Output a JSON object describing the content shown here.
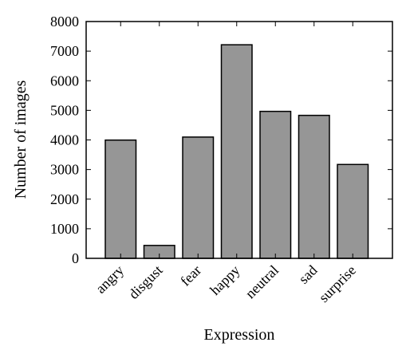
{
  "chart_data": {
    "type": "bar",
    "title": "",
    "xlabel": "Expression",
    "ylabel": "Number of images",
    "categories": [
      "angry",
      "disgust",
      "fear",
      "happy",
      "neutral",
      "sad",
      "surprise"
    ],
    "values": [
      3995,
      436,
      4097,
      7215,
      4965,
      4830,
      3171
    ],
    "ylim": [
      0,
      8000
    ],
    "yticks": [
      0,
      1000,
      2000,
      3000,
      4000,
      5000,
      6000,
      7000,
      8000
    ],
    "grid": false,
    "legend": "none",
    "bar_color": "#969696",
    "edge_color": "#000000"
  }
}
